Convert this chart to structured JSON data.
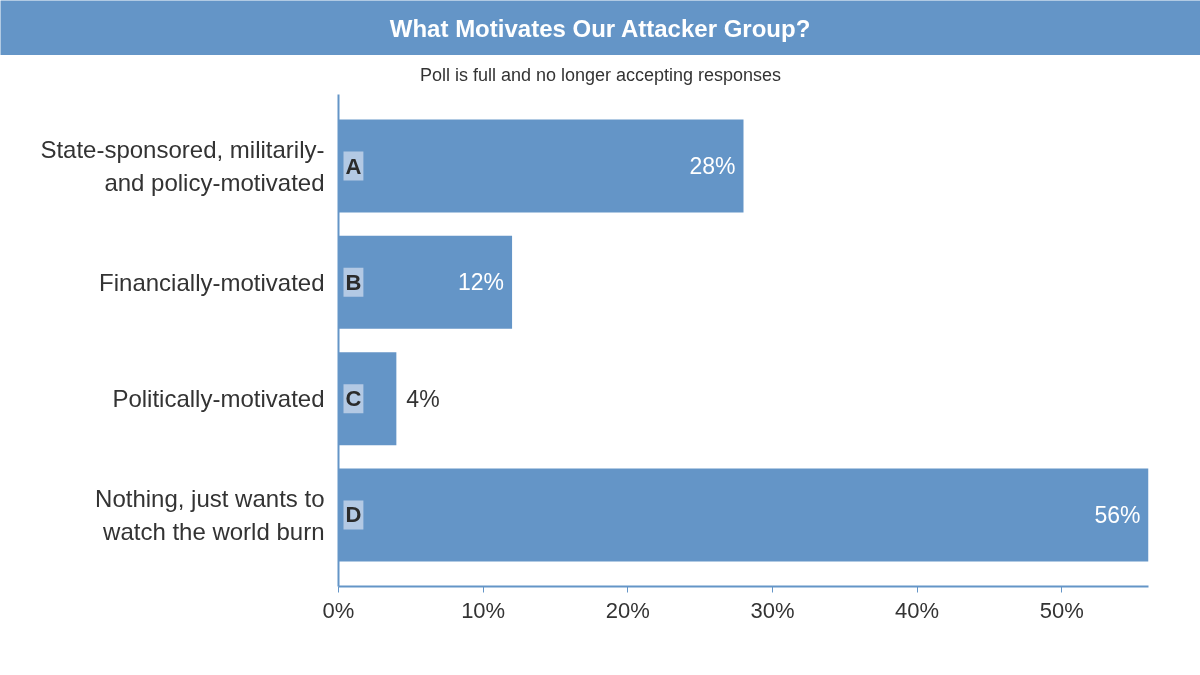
{
  "chart_data": {
    "type": "bar",
    "orientation": "horizontal",
    "title": "What Motivates Our Attacker Group?",
    "subtitle": "Poll is full and no longer accepting responses",
    "categories": [
      "State-sponsored, militarily- and policy-motivated",
      "Financially-motivated",
      "Politically-motivated",
      "Nothing, just wants to watch the world burn"
    ],
    "values": [
      28,
      12,
      4,
      56
    ],
    "color": "#6495c7",
    "value_labels": [
      "28%",
      "12%",
      "4%",
      "56%"
    ],
    "xlim": [
      0,
      56
    ],
    "xticks": [
      {
        "value": 0,
        "label": "0%"
      },
      {
        "value": 10,
        "label": "10%"
      },
      {
        "value": 20,
        "label": "20%"
      },
      {
        "value": 30,
        "label": "30%"
      },
      {
        "value": 40,
        "label": "40%"
      },
      {
        "value": 50,
        "label": "50%"
      }
    ],
    "annotations": [
      "A",
      "B",
      "C",
      "D"
    ]
  }
}
